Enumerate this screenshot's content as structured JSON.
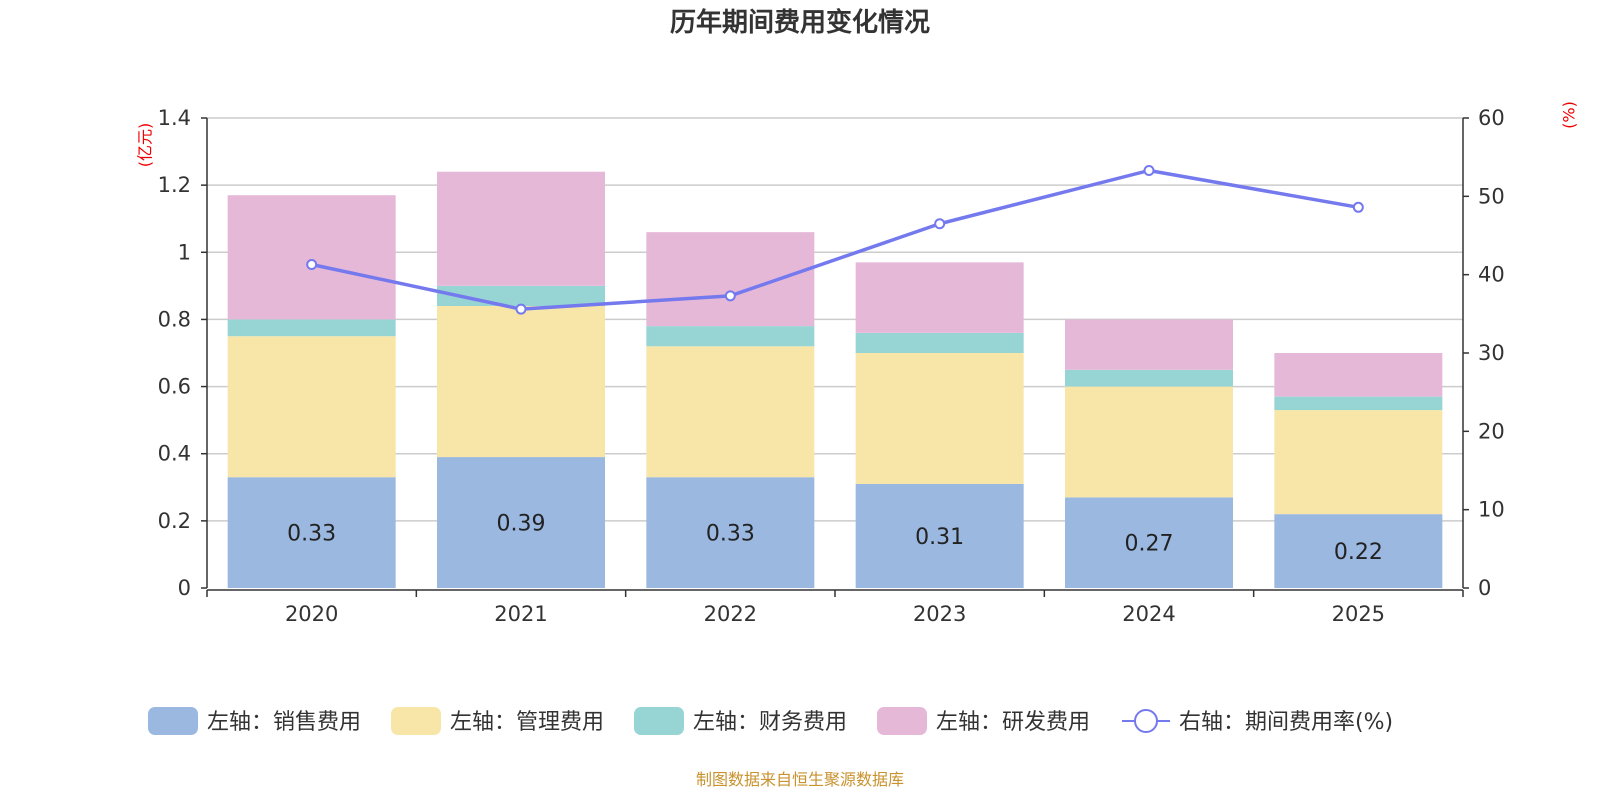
{
  "chart_data": {
    "type": "bar",
    "title": "历年期间费用变化情况",
    "categories": [
      "2020",
      "2021",
      "2022",
      "2023",
      "2024",
      "2025"
    ],
    "left_axis": {
      "unit": "(亿元)",
      "ylim": [
        0,
        1.4
      ],
      "ticks": [
        "0",
        "0.2",
        "0.4",
        "0.6",
        "0.8",
        "1",
        "1.2",
        "1.4"
      ]
    },
    "right_axis": {
      "unit": "(%)",
      "ylim": [
        0,
        60
      ],
      "ticks": [
        "0",
        "10",
        "20",
        "30",
        "40",
        "50",
        "60"
      ]
    },
    "grid": true,
    "legend_position": "bottom",
    "series": [
      {
        "name": "左轴：销售费用",
        "axis": "left",
        "kind": "bar",
        "color": "#9bb8e1",
        "values": [
          0.33,
          0.39,
          0.33,
          0.31,
          0.27,
          0.22
        ],
        "labels": [
          "0.33",
          "0.39",
          "0.33",
          "0.31",
          "0.27",
          "0.22"
        ]
      },
      {
        "name": "左轴：管理费用",
        "axis": "left",
        "kind": "bar",
        "color": "#f7e6a8",
        "values": [
          0.42,
          0.45,
          0.39,
          0.39,
          0.33,
          0.31
        ]
      },
      {
        "name": "左轴：财务费用",
        "axis": "left",
        "kind": "bar",
        "color": "#97d4d4",
        "values": [
          0.05,
          0.06,
          0.06,
          0.06,
          0.05,
          0.04
        ]
      },
      {
        "name": "左轴：研发费用",
        "axis": "left",
        "kind": "bar",
        "color": "#e6b8d8",
        "values": [
          0.37,
          0.34,
          0.28,
          0.21,
          0.15,
          0.13
        ]
      },
      {
        "name": "右轴：期间费用率(%)",
        "axis": "right",
        "kind": "line",
        "color": "#7479ee",
        "values": [
          41.3,
          35.6,
          37.3,
          46.5,
          53.3,
          48.6
        ]
      }
    ],
    "source": "制图数据来自恒生聚源数据库"
  }
}
